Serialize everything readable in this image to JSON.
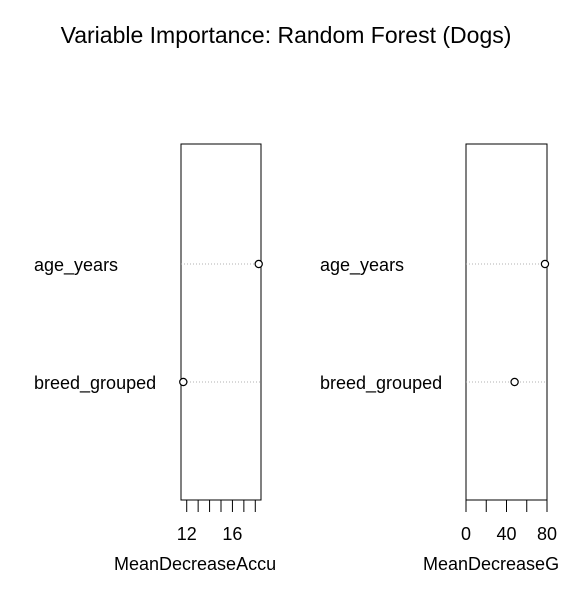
{
  "chart_data": {
    "title": "Variable Importance: Random Forest (Dogs)",
    "type": "scatter",
    "grid": false,
    "legend": "none",
    "panels": [
      {
        "xlabel": "MeanDecreaseAccuracy",
        "xlabel_shown": "MeanDecreaseAccu",
        "xlim": [
          11.5,
          18.5
        ],
        "ticks": [
          12,
          13,
          14,
          15,
          16,
          17,
          18
        ],
        "tick_labels": [
          {
            "value": 12,
            "label": "12"
          },
          {
            "value": 16,
            "label": "16"
          }
        ],
        "categories": [
          "age_years",
          "breed_grouped"
        ],
        "values": [
          18.3,
          11.7
        ]
      },
      {
        "xlabel": "MeanDecreaseGini",
        "xlabel_shown": "MeanDecreaseG",
        "xlim": [
          0,
          80
        ],
        "ticks": [
          0,
          20,
          40,
          60,
          80
        ],
        "tick_labels": [
          {
            "value": 0,
            "label": "0"
          },
          {
            "value": 40,
            "label": "40"
          },
          {
            "value": 80,
            "label": "80"
          }
        ],
        "categories": [
          "age_years",
          "breed_grouped"
        ],
        "values": [
          78,
          48
        ]
      }
    ]
  }
}
